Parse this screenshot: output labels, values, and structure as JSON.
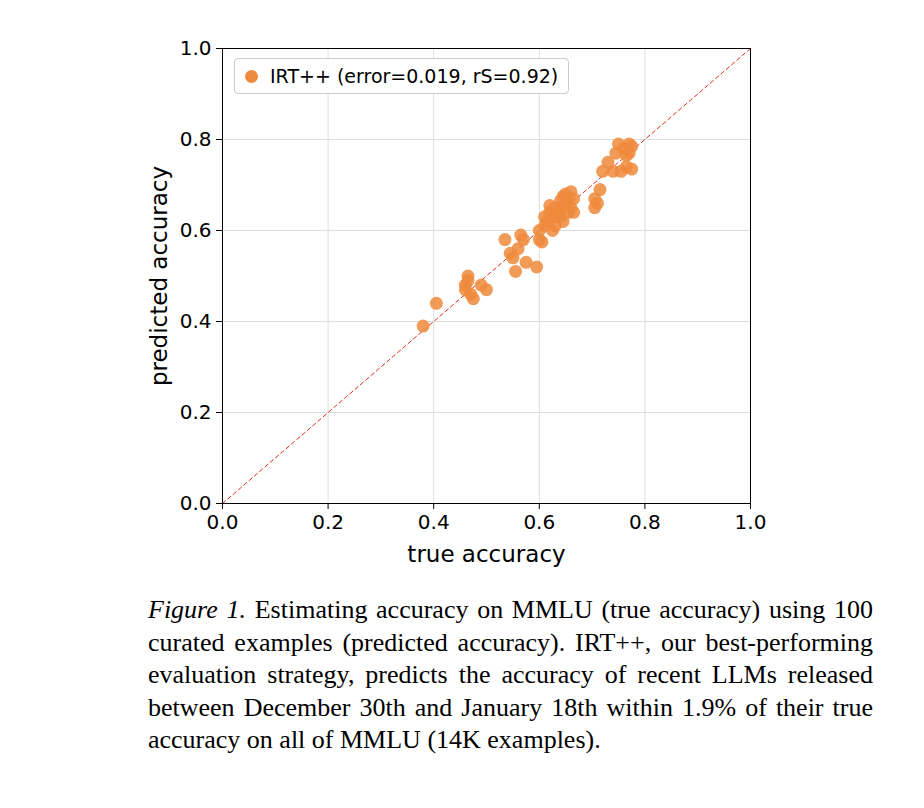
{
  "chart_data": {
    "type": "scatter",
    "x_label": "true accuracy",
    "y_label": "predicted accuracy",
    "xlim": [
      0,
      1
    ],
    "ylim": [
      0,
      1
    ],
    "xticks": [
      {
        "value": 0,
        "label": "0.0"
      },
      {
        "value": 0.2,
        "label": "0.2"
      },
      {
        "value": 0.4,
        "label": "0.4"
      },
      {
        "value": 0.6,
        "label": "0.6"
      },
      {
        "value": 0.8,
        "label": "0.8"
      },
      {
        "value": 1,
        "label": "1.0"
      }
    ],
    "yticks": [
      {
        "value": 0,
        "label": "0.0"
      },
      {
        "value": 0.2,
        "label": "0.2"
      },
      {
        "value": 0.4,
        "label": "0.4"
      },
      {
        "value": 0.6,
        "label": "0.6"
      },
      {
        "value": 0.8,
        "label": "0.8"
      },
      {
        "value": 1,
        "label": "1.0"
      }
    ],
    "grid": true,
    "legend": "upper left",
    "series": [
      {
        "name": "IRT++ (error=0.019, rS=0.92)",
        "color": "#ee8a3c",
        "marker": "circle",
        "x": [
          0.38,
          0.405,
          0.46,
          0.46,
          0.465,
          0.465,
          0.47,
          0.475,
          0.49,
          0.5,
          0.535,
          0.545,
          0.55,
          0.555,
          0.56,
          0.565,
          0.57,
          0.575,
          0.595,
          0.6,
          0.6,
          0.605,
          0.61,
          0.61,
          0.615,
          0.62,
          0.62,
          0.625,
          0.63,
          0.63,
          0.635,
          0.64,
          0.64,
          0.645,
          0.645,
          0.65,
          0.65,
          0.655,
          0.655,
          0.66,
          0.66,
          0.665,
          0.665,
          0.64,
          0.63,
          0.705,
          0.705,
          0.71,
          0.715,
          0.72,
          0.74,
          0.745,
          0.75,
          0.755,
          0.76,
          0.765,
          0.765,
          0.77,
          0.775,
          0.775,
          0.77,
          0.73
        ],
        "values": [
          0.39,
          0.44,
          0.47,
          0.48,
          0.49,
          0.5,
          0.46,
          0.45,
          0.48,
          0.47,
          0.58,
          0.55,
          0.54,
          0.51,
          0.56,
          0.59,
          0.58,
          0.53,
          0.52,
          0.58,
          0.6,
          0.575,
          0.61,
          0.63,
          0.62,
          0.655,
          0.64,
          0.6,
          0.63,
          0.61,
          0.64,
          0.665,
          0.65,
          0.62,
          0.675,
          0.68,
          0.66,
          0.64,
          0.67,
          0.685,
          0.65,
          0.67,
          0.64,
          0.63,
          0.65,
          0.65,
          0.67,
          0.66,
          0.69,
          0.73,
          0.73,
          0.77,
          0.79,
          0.73,
          0.78,
          0.74,
          0.765,
          0.79,
          0.785,
          0.735,
          0.77,
          0.75
        ]
      }
    ],
    "reference_line": {
      "color": "#e0301e",
      "line_style": "dashed"
    },
    "caption_label": "Figure 1.",
    "caption": "Estimating accuracy on MMLU (true accuracy) using 100 curated examples (predicted accuracy). IRT++, our best-performing evaluation strategy, predicts the accuracy of recent LLMs released between December 30th and January 18th within 1.9% of their true accuracy on all of MMLU (14K examples)."
  }
}
